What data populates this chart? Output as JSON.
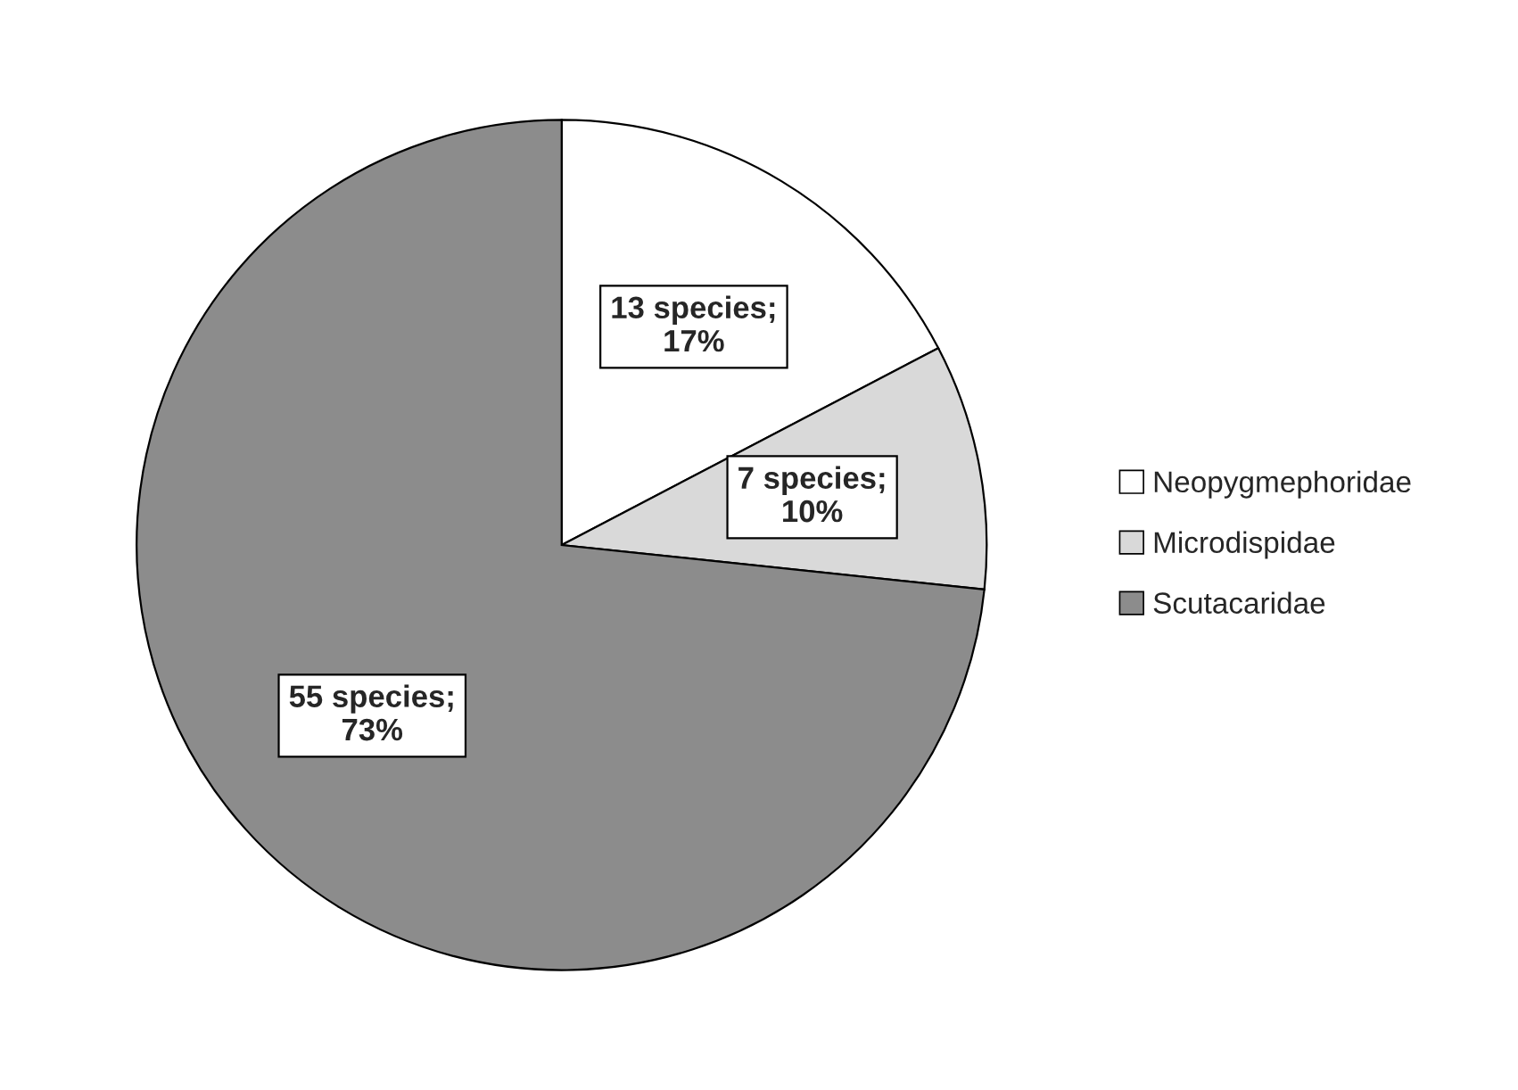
{
  "chart_data": {
    "type": "pie",
    "categories": [
      "Neopygmephoridae",
      "Microdispidae",
      "Scutacaridae"
    ],
    "values": [
      13,
      7,
      55
    ],
    "colors": [
      "#ffffff",
      "#d9d9d9",
      "#8c8c8c"
    ],
    "value_labels": [
      "13 species;\n17%",
      "7 species;\n10%",
      "55 species;\n73%"
    ],
    "legend": "right"
  }
}
